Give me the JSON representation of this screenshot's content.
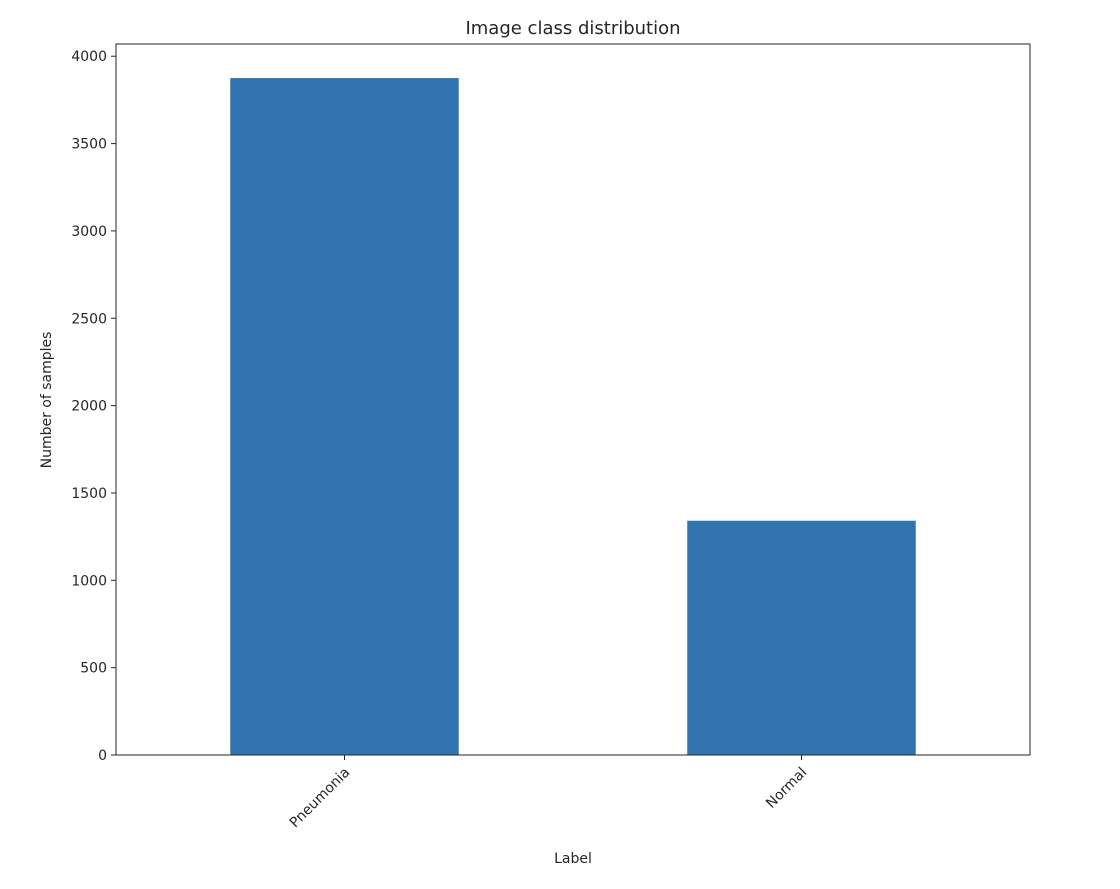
{
  "chart_data": {
    "type": "bar",
    "title": "Image class distribution",
    "xlabel": "Label",
    "ylabel": "Number of samples",
    "categories": [
      "Pneumonia",
      "Normal"
    ],
    "values": [
      3875,
      1341
    ],
    "ylim": [
      0,
      4070
    ],
    "yticks": [
      0,
      500,
      1000,
      1500,
      2000,
      2500,
      3000,
      3500,
      4000
    ],
    "bar_color": "#3274b0",
    "axis_color": "#262626",
    "grid": false,
    "legend": false,
    "xtick_rotation": "45 degrees"
  }
}
